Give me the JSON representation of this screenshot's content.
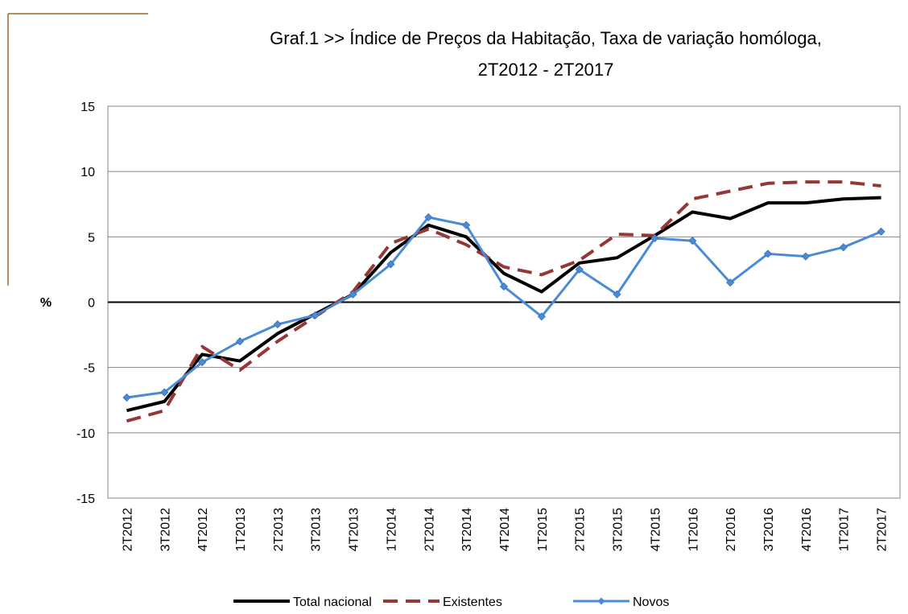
{
  "chart_data": {
    "type": "line",
    "title": [
      "Graf.1  >>  Índice de Preços da Habitação, Taxa de variação homóloga,",
      "2T2012 - 2T2017"
    ],
    "y_label": "%",
    "categories": [
      "2T2012",
      "3T2012",
      "4T2012",
      "1T2013",
      "2T2013",
      "3T2013",
      "4T2013",
      "1T2014",
      "2T2014",
      "3T2014",
      "4T2014",
      "1T2015",
      "2T2015",
      "3T2015",
      "4T2015",
      "1T2016",
      "2T2016",
      "3T2016",
      "4T2016",
      "1T2017",
      "2T2017"
    ],
    "series": [
      {
        "name": "Total nacional",
        "color": "#000000",
        "line_style": "solid",
        "marker": "none",
        "values": [
          -8.3,
          -7.6,
          -4.0,
          -4.5,
          -2.4,
          -0.9,
          0.6,
          3.8,
          5.9,
          5.0,
          2.2,
          0.8,
          3.0,
          3.4,
          5.1,
          6.9,
          6.4,
          7.6,
          7.6,
          7.9,
          8.0
        ]
      },
      {
        "name": "Existentes",
        "color": "#953735",
        "line_style": "dashed",
        "marker": "none",
        "values": [
          -9.1,
          -8.3,
          -3.4,
          -5.2,
          -3.0,
          -1.1,
          0.8,
          4.5,
          5.6,
          4.4,
          2.7,
          2.1,
          3.2,
          5.2,
          5.1,
          7.9,
          8.5,
          9.1,
          9.2,
          9.2,
          8.9
        ]
      },
      {
        "name": "Novos",
        "color": "#4a8bd6",
        "line_style": "solid",
        "marker": "diamond",
        "values": [
          -7.3,
          -6.9,
          -4.6,
          -3.0,
          -1.7,
          -1.0,
          0.6,
          2.9,
          6.5,
          5.9,
          1.2,
          -1.1,
          2.5,
          0.6,
          4.9,
          4.7,
          1.5,
          3.7,
          3.5,
          4.2,
          5.4
        ]
      }
    ],
    "ylim": [
      -15,
      15
    ],
    "yticks": [
      -15,
      -10,
      -5,
      0,
      5,
      10,
      15
    ],
    "grid": true,
    "legend": "bottom"
  }
}
